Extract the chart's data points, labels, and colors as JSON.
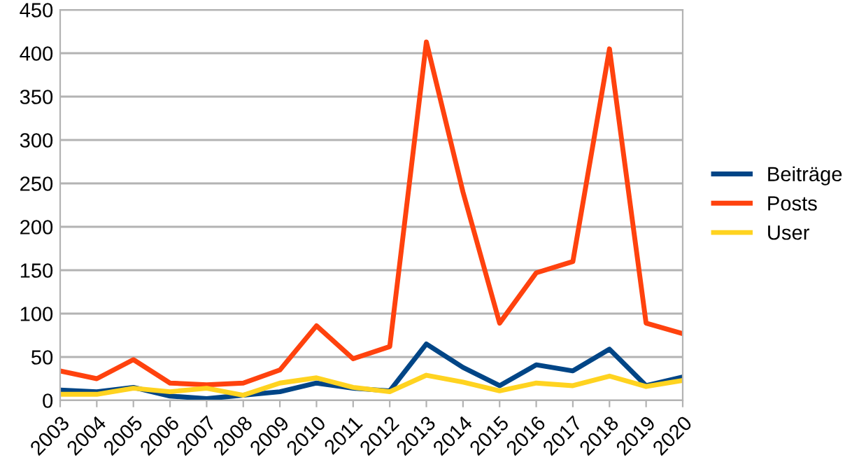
{
  "chart_data": {
    "type": "line",
    "categories": [
      "2003",
      "2004",
      "2005",
      "2006",
      "2007",
      "2008",
      "2009",
      "2010",
      "2011",
      "2012",
      "2013",
      "2014",
      "2015",
      "2016",
      "2017",
      "2018",
      "2019",
      "2020"
    ],
    "series": [
      {
        "name": "Beiträge",
        "color": "#004586",
        "values": [
          12,
          10,
          15,
          5,
          2,
          6,
          10,
          20,
          14,
          11,
          65,
          38,
          17,
          41,
          34,
          59,
          17,
          27
        ]
      },
      {
        "name": "Posts",
        "color": "#ff420e",
        "values": [
          34,
          25,
          47,
          20,
          18,
          20,
          35,
          86,
          48,
          62,
          413,
          240,
          89,
          147,
          160,
          405,
          89,
          77
        ]
      },
      {
        "name": "User",
        "color": "#ffd320",
        "values": [
          7,
          7,
          14,
          10,
          14,
          6,
          20,
          26,
          15,
          10,
          29,
          21,
          11,
          20,
          17,
          28,
          16,
          23
        ]
      }
    ],
    "ylim": [
      0,
      450
    ],
    "yticks": [
      0,
      50,
      100,
      150,
      200,
      250,
      300,
      350,
      400,
      450
    ],
    "grid": "y",
    "legend": "right",
    "marker": "none",
    "line_style": "solid"
  }
}
